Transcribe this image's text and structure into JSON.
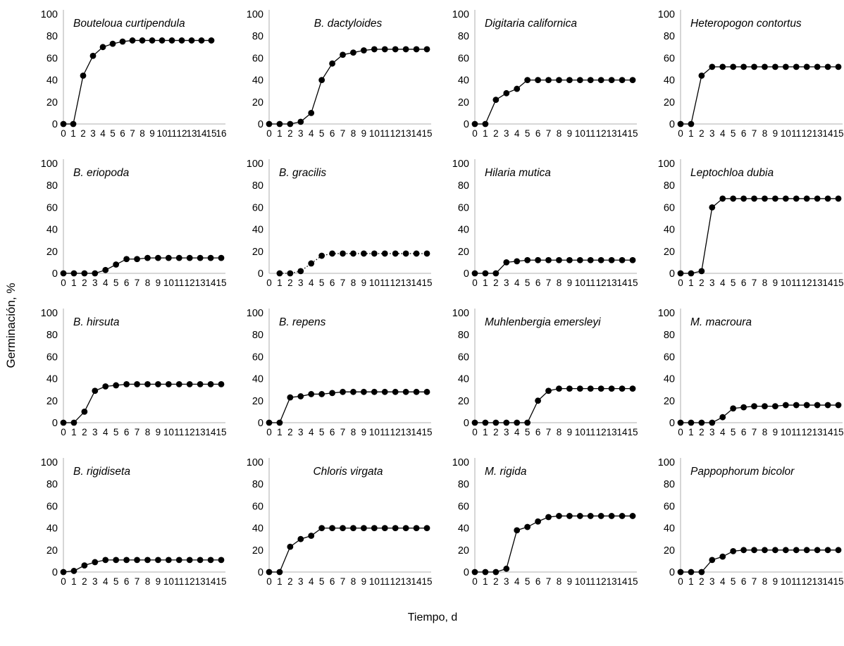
{
  "figure": {
    "y_axis_label": "Germinación, %",
    "x_axis_label": "Tiempo, d"
  },
  "colors": {
    "series": "#000000",
    "axis": "#bfbfbf",
    "text": "#000000",
    "background": "#ffffff"
  },
  "axes": {
    "ylim": [
      0,
      100
    ],
    "yticks": [
      0,
      20,
      40,
      60,
      80,
      100
    ],
    "xticks": [
      0,
      1,
      2,
      3,
      4,
      5,
      6,
      7,
      8,
      9,
      10,
      11,
      12,
      13,
      14,
      15
    ],
    "grid": false,
    "legend": "none"
  },
  "chart_data": [
    {
      "type": "line",
      "title": "Bouteloua curtipendula",
      "title_align": "left",
      "marker": "filled-circle",
      "line_style": "solid",
      "xlim": [
        0,
        16
      ],
      "xticks": [
        0,
        1,
        2,
        3,
        4,
        5,
        6,
        7,
        8,
        9,
        10,
        11,
        12,
        13,
        14,
        15,
        16
      ],
      "x_start": 0,
      "y": [
        0,
        0,
        44,
        62,
        70,
        73,
        75,
        76,
        76,
        76,
        76,
        76,
        76,
        76,
        76,
        76
      ]
    },
    {
      "type": "line",
      "title": "B. dactyloides",
      "title_align": "center",
      "marker": "filled-circle",
      "line_style": "solid",
      "xlim": [
        0,
        15
      ],
      "x_start": 0,
      "y": [
        0,
        0,
        0,
        2,
        10,
        40,
        55,
        63,
        65,
        67,
        68,
        68,
        68,
        68,
        68,
        68
      ]
    },
    {
      "type": "line",
      "title": "Digitaria californica",
      "title_align": "left",
      "marker": "filled-circle",
      "line_style": "solid",
      "xlim": [
        0,
        15
      ],
      "x_start": 0,
      "y": [
        0,
        0,
        22,
        28,
        32,
        40,
        40,
        40,
        40,
        40,
        40,
        40,
        40,
        40,
        40,
        40
      ]
    },
    {
      "type": "line",
      "title": "Heteropogon contortus",
      "title_align": "left",
      "marker": "filled-circle",
      "line_style": "solid",
      "xlim": [
        0,
        15
      ],
      "x_start": 0,
      "y": [
        0,
        0,
        44,
        52,
        52,
        52,
        52,
        52,
        52,
        52,
        52,
        52,
        52,
        52,
        52,
        52
      ]
    },
    {
      "type": "line",
      "title": "B. eriopoda",
      "title_align": "left",
      "marker": "filled-circle",
      "line_style": "solid",
      "xlim": [
        0,
        15
      ],
      "x_start": 0,
      "y": [
        0,
        0,
        0,
        0,
        3,
        8,
        13,
        13,
        14,
        14,
        14,
        14,
        14,
        14,
        14,
        14
      ]
    },
    {
      "type": "line",
      "title": "B. gracilis",
      "title_align": "left",
      "marker": "filled-circle",
      "line_style": "dotted",
      "xlim": [
        0,
        15
      ],
      "x_start": 1,
      "y": [
        0,
        0,
        2,
        9,
        16,
        18,
        18,
        18,
        18,
        18,
        18,
        18,
        18,
        18,
        18
      ]
    },
    {
      "type": "line",
      "title": "Hilaria mutica",
      "title_align": "left",
      "marker": "filled-circle",
      "line_style": "solid",
      "xlim": [
        0,
        15
      ],
      "x_start": 0,
      "y": [
        0,
        0,
        0,
        10,
        11,
        12,
        12,
        12,
        12,
        12,
        12,
        12,
        12,
        12,
        12,
        12
      ]
    },
    {
      "type": "line",
      "title": "Leptochloa dubia",
      "title_align": "left",
      "marker": "filled-circle",
      "line_style": "solid",
      "xlim": [
        0,
        15
      ],
      "x_start": 0,
      "y": [
        0,
        0,
        2,
        60,
        68,
        68,
        68,
        68,
        68,
        68,
        68,
        68,
        68,
        68,
        68,
        68
      ]
    },
    {
      "type": "line",
      "title": "B. hirsuta",
      "title_align": "left",
      "marker": "filled-circle",
      "line_style": "solid",
      "xlim": [
        0,
        15
      ],
      "x_start": 0,
      "y": [
        0,
        0,
        10,
        29,
        33,
        34,
        35,
        35,
        35,
        35,
        35,
        35,
        35,
        35,
        35,
        35
      ]
    },
    {
      "type": "line",
      "title": "B. repens",
      "title_align": "left",
      "marker": "filled-circle",
      "line_style": "solid",
      "xlim": [
        0,
        15
      ],
      "x_start": 0,
      "y": [
        0,
        0,
        23,
        24,
        26,
        26,
        27,
        28,
        28,
        28,
        28,
        28,
        28,
        28,
        28,
        28
      ]
    },
    {
      "type": "line",
      "title": "Muhlenbergia emersleyi",
      "title_align": "left",
      "marker": "filled-circle",
      "line_style": "solid",
      "xlim": [
        0,
        15
      ],
      "x_start": 0,
      "y": [
        0,
        0,
        0,
        0,
        0,
        0,
        20,
        29,
        31,
        31,
        31,
        31,
        31,
        31,
        31,
        31
      ]
    },
    {
      "type": "line",
      "title": "M. macroura",
      "title_align": "left",
      "marker": "filled-circle",
      "line_style": "solid",
      "xlim": [
        0,
        15
      ],
      "x_start": 0,
      "y": [
        0,
        0,
        0,
        0,
        5,
        13,
        14,
        15,
        15,
        15,
        16,
        16,
        16,
        16,
        16,
        16
      ]
    },
    {
      "type": "line",
      "title": "B. rigidiseta",
      "title_align": "left",
      "marker": "filled-circle",
      "line_style": "solid",
      "xlim": [
        0,
        15
      ],
      "x_start": 0,
      "y": [
        0,
        1,
        6,
        9,
        11,
        11,
        11,
        11,
        11,
        11,
        11,
        11,
        11,
        11,
        11,
        11
      ]
    },
    {
      "type": "line",
      "title": "Chloris virgata",
      "title_align": "center",
      "marker": "filled-circle",
      "line_style": "solid",
      "xlim": [
        0,
        15
      ],
      "x_start": 0,
      "y": [
        0,
        0,
        23,
        30,
        33,
        40,
        40,
        40,
        40,
        40,
        40,
        40,
        40,
        40,
        40,
        40
      ]
    },
    {
      "type": "line",
      "title": "M. rigida",
      "title_align": "left",
      "marker": "filled-circle",
      "line_style": "solid",
      "xlim": [
        0,
        15
      ],
      "x_start": 0,
      "y": [
        0,
        0,
        0,
        3,
        38,
        41,
        46,
        50,
        51,
        51,
        51,
        51,
        51,
        51,
        51,
        51
      ]
    },
    {
      "type": "line",
      "title": "Pappophorum bicolor",
      "title_align": "left",
      "marker": "filled-circle",
      "line_style": "solid",
      "xlim": [
        0,
        15
      ],
      "x_start": 0,
      "y": [
        0,
        0,
        0,
        11,
        14,
        19,
        20,
        20,
        20,
        20,
        20,
        20,
        20,
        20,
        20,
        20
      ]
    }
  ]
}
